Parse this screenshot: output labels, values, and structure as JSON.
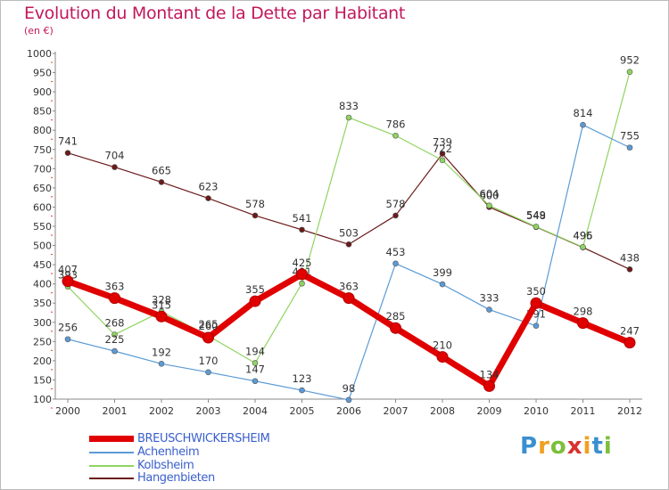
{
  "chart_data": {
    "type": "line",
    "title": "Evolution du Montant de la Dette par Habitant",
    "subtitle": "(en €)",
    "x": [
      "2000",
      "2001",
      "2002",
      "2003",
      "2004",
      "2005",
      "2006",
      "2007",
      "2008",
      "2009",
      "2010",
      "2011",
      "2012"
    ],
    "ylim": [
      100,
      1000
    ],
    "yticks": [
      100,
      150,
      200,
      250,
      300,
      350,
      400,
      450,
      500,
      550,
      600,
      650,
      700,
      750,
      800,
      850,
      900,
      950,
      1000
    ],
    "grid": false,
    "legend_position": "bottom-left",
    "series": [
      {
        "name": "Hangenbieten",
        "color": "#6b1a1a",
        "values": [
          741,
          704,
          665,
          623,
          578,
          541,
          503,
          578,
          739,
          600,
          548,
          495,
          438
        ]
      },
      {
        "name": "Kolbsheim",
        "color": "#8fd460",
        "values": [
          393,
          268,
          328,
          265,
          194,
          401,
          833,
          786,
          722,
          604,
          549,
          496,
          952
        ]
      },
      {
        "name": "Achenheim",
        "color": "#5b9bd5",
        "values": [
          256,
          225,
          192,
          170,
          147,
          123,
          98,
          453,
          399,
          333,
          291,
          814,
          755
        ]
      },
      {
        "name": "BREUSCHWICKERSHEIM",
        "color": "#e00000",
        "values": [
          407,
          363,
          315,
          260,
          355,
          425,
          363,
          285,
          210,
          134,
          350,
          298,
          247
        ]
      }
    ]
  },
  "legend": {
    "items": [
      {
        "label": "BREUSCHWICKERSHEIM",
        "color": "#e00000"
      },
      {
        "label": "Achenheim",
        "color": "#5b9bd5"
      },
      {
        "label": "Kolbsheim",
        "color": "#8fd460"
      },
      {
        "label": "Hangenbieten",
        "color": "#6b1a1a"
      }
    ]
  },
  "logo": {
    "letters": [
      "P",
      "r",
      "o",
      "x",
      "i",
      "t",
      "i"
    ],
    "colors": [
      "#3a8fd1",
      "#f0a020",
      "#7cbf3a",
      "#d93030",
      "#f0a020",
      "#3a8fd1",
      "#7cbf3a"
    ]
  }
}
